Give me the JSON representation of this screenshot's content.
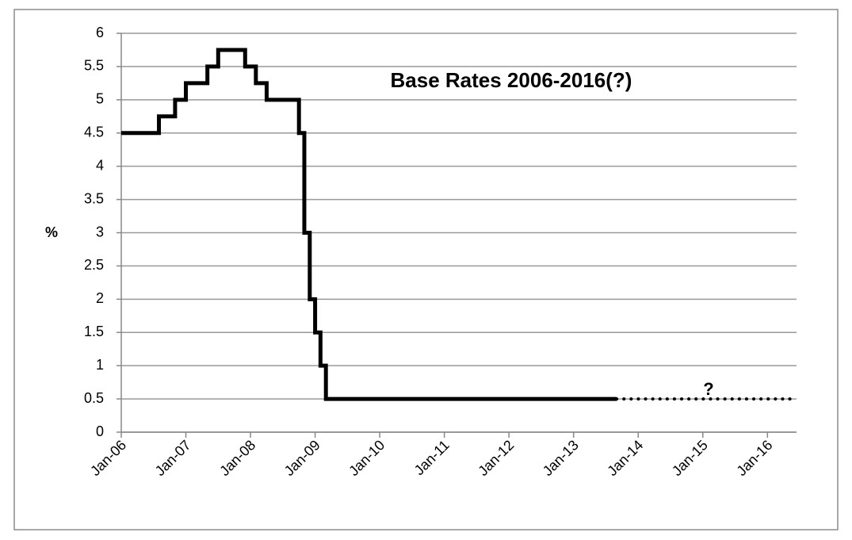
{
  "chart_data": {
    "type": "step-line",
    "title": "Base Rates 2006-2016(?)",
    "y_label": "%",
    "annotation": "?",
    "series": [
      {
        "style": "solid",
        "color": "#000000",
        "x": [
          2006,
          2006.583,
          2006.833,
          2007,
          2007.333,
          2007.5,
          2007.917,
          2008.083,
          2008.25,
          2008.75,
          2008.833,
          2008.917,
          2009,
          2009.083,
          2009.167,
          2013.667
        ],
        "values": [
          4.5,
          4.75,
          5,
          5.25,
          5.5,
          5.75,
          5.5,
          5.25,
          5,
          4.5,
          3,
          2,
          1.5,
          1,
          0.5,
          0.5
        ]
      },
      {
        "style": "dotted",
        "color": "#000000",
        "x": [
          2013.667,
          2016.45
        ],
        "values": [
          0.5,
          0.5
        ]
      }
    ],
    "xlim": [
      2006,
      2016.45
    ],
    "xticks": [
      {
        "value": 2006,
        "label": "Jan-06"
      },
      {
        "value": 2007,
        "label": "Jan-07"
      },
      {
        "value": 2008,
        "label": "Jan-08"
      },
      {
        "value": 2009,
        "label": "Jan-09"
      },
      {
        "value": 2010,
        "label": "Jan-10"
      },
      {
        "value": 2011,
        "label": "Jan-11"
      },
      {
        "value": 2012,
        "label": "Jan-12"
      },
      {
        "value": 2013,
        "label": "Jan-13"
      },
      {
        "value": 2014,
        "label": "Jan-14"
      },
      {
        "value": 2015,
        "label": "Jan-15"
      },
      {
        "value": 2016,
        "label": "Jan-16"
      }
    ],
    "ylim": [
      0,
      6
    ],
    "yticks": [
      0,
      0.5,
      1,
      1.5,
      2,
      2.5,
      3,
      3.5,
      4,
      4.5,
      5,
      5.5,
      6
    ],
    "grid": true
  }
}
